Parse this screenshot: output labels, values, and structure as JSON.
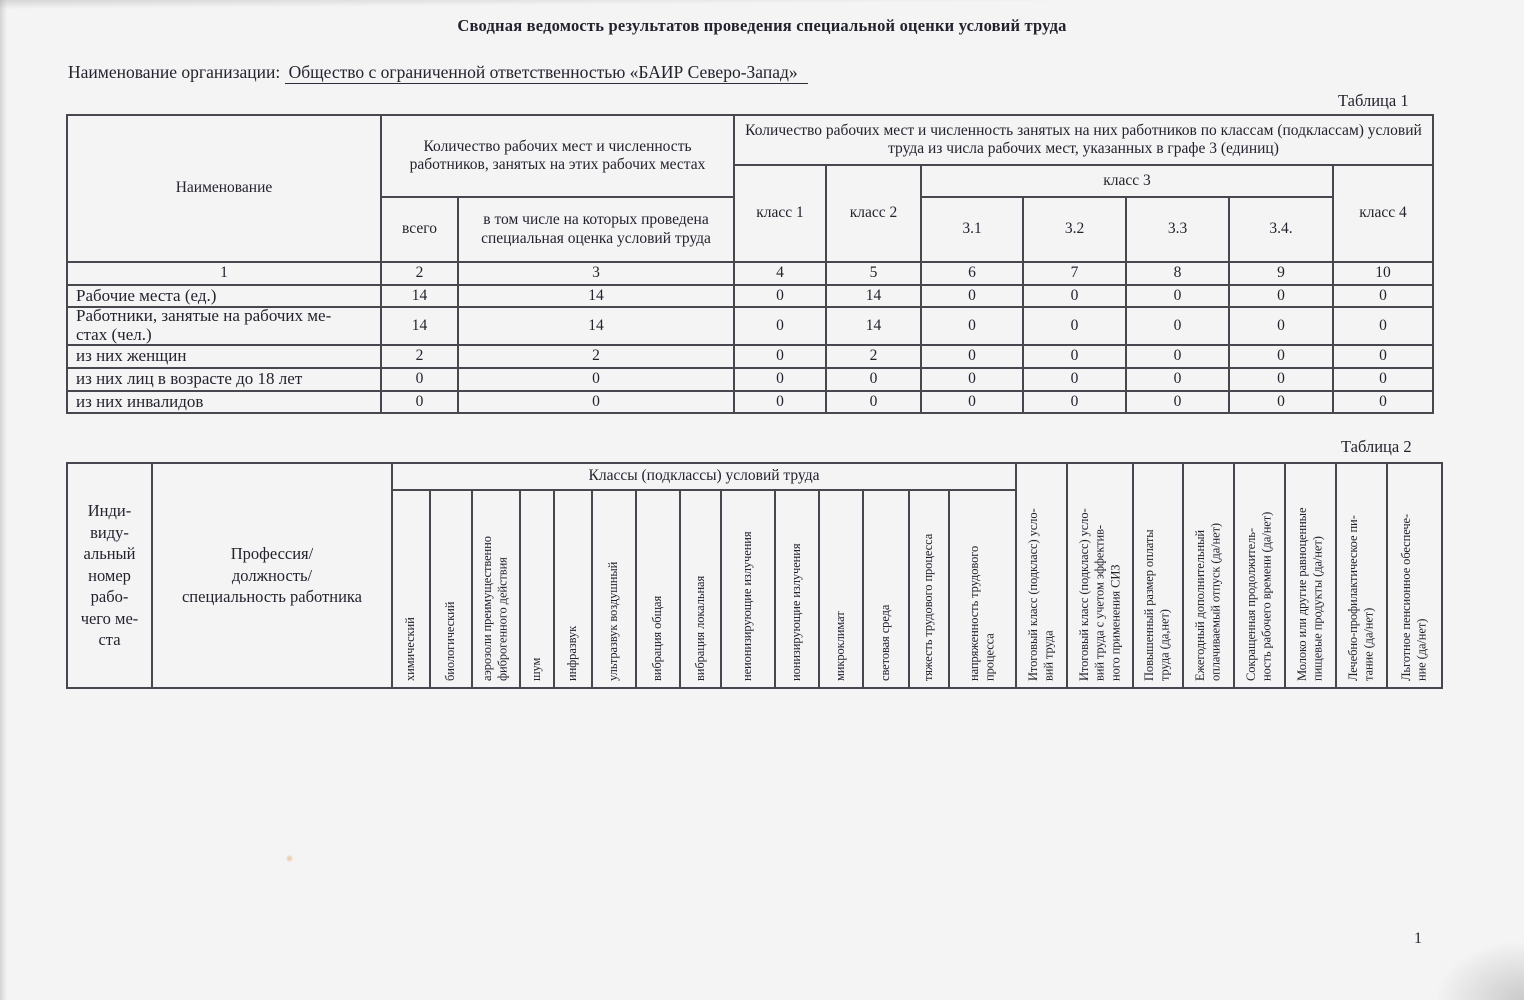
{
  "page": {
    "title": "Сводная ведомость результатов проведения специальной оценки условий труда",
    "org_label": "Наименование организации:",
    "org_name": "Общество с ограниченной ответственностью «БАИР Северо-Запад»",
    "page_number": "1"
  },
  "table1": {
    "caption": "Таблица 1",
    "header": {
      "name": "Наименование",
      "group_left": "Количество рабочих мест и численность работников, занятых на этих рабочих местах",
      "sub_total": "всего",
      "sub_assessed": "в том числе на которых проведена специальная оценка условий труда",
      "group_right": "Количество рабочих мест и численность занятых на них работников по классам (подклассам) условий труда из числа рабочих мест, указанных в графе 3 (единиц)",
      "class1": "класс 1",
      "class2": "класс 2",
      "class3": "класс 3",
      "class4": "класс 4",
      "class3_subs": [
        "3.1",
        "3.2",
        "3.3",
        "3.4."
      ]
    },
    "col_numbers": [
      "1",
      "2",
      "3",
      "4",
      "5",
      "6",
      "7",
      "8",
      "9",
      "10"
    ],
    "rows": [
      {
        "label": "Рабочие места (ед.)",
        "values": [
          "14",
          "14",
          "0",
          "14",
          "0",
          "0",
          "0",
          "0",
          "0"
        ]
      },
      {
        "label": "Работники, занятые на рабочих ме-\nстах (чел.)",
        "values": [
          "14",
          "14",
          "0",
          "14",
          "0",
          "0",
          "0",
          "0",
          "0"
        ]
      },
      {
        "label": "из них женщин",
        "values": [
          "2",
          "2",
          "0",
          "2",
          "0",
          "0",
          "0",
          "0",
          "0"
        ]
      },
      {
        "label": "из них лиц в возрасте до 18 лет",
        "values": [
          "0",
          "0",
          "0",
          "0",
          "0",
          "0",
          "0",
          "0",
          "0"
        ]
      },
      {
        "label": "из них инвалидов",
        "values": [
          "0",
          "0",
          "0",
          "0",
          "0",
          "0",
          "0",
          "0",
          "0"
        ]
      }
    ]
  },
  "table2": {
    "caption": "Таблица 2",
    "col_id": "Инди-\nвиду-\nальный\nномер\nрабо-\nчего ме-\nста",
    "col_profession": "Профессия/\nдолжность/\nспециальность работника",
    "group_header": "Классы (подклассы) условий труда",
    "factors": [
      "химический",
      "биологический",
      "аэрозоли преимущественно\nфиброгенного действия",
      "шум",
      "инфразвук",
      "ультразвук воздушный",
      "вибрация общая",
      "вибрация локальная",
      "неионизирующие излучения",
      "ионизирующие излучения",
      "микроклимат",
      "световая среда",
      "тяжесть трудового процесса",
      "напряженность трудового\nпроцесса"
    ],
    "results": [
      "Итоговый класс (подкласс) усло-\nвий труда",
      "Итоговый класс (подкласс) усло-\nвий труда с учетом эффектив-\nного применения СИЗ",
      "Повышенный размер оплаты\nтруда (да,нет)",
      "Ежегодный дополнительный\nоплачиваемый отпуск (да/нет)",
      "Сокращенная продолжитель-\nность рабочего времени (да/нет)",
      "Молоко или другие равноценные\nпищевые продукты (да/нет)",
      "Лечебно-профилактическое пи-\nтание (да/нет)",
      "Льготное пенсионное обеспече-\nние (да/нет)"
    ]
  }
}
